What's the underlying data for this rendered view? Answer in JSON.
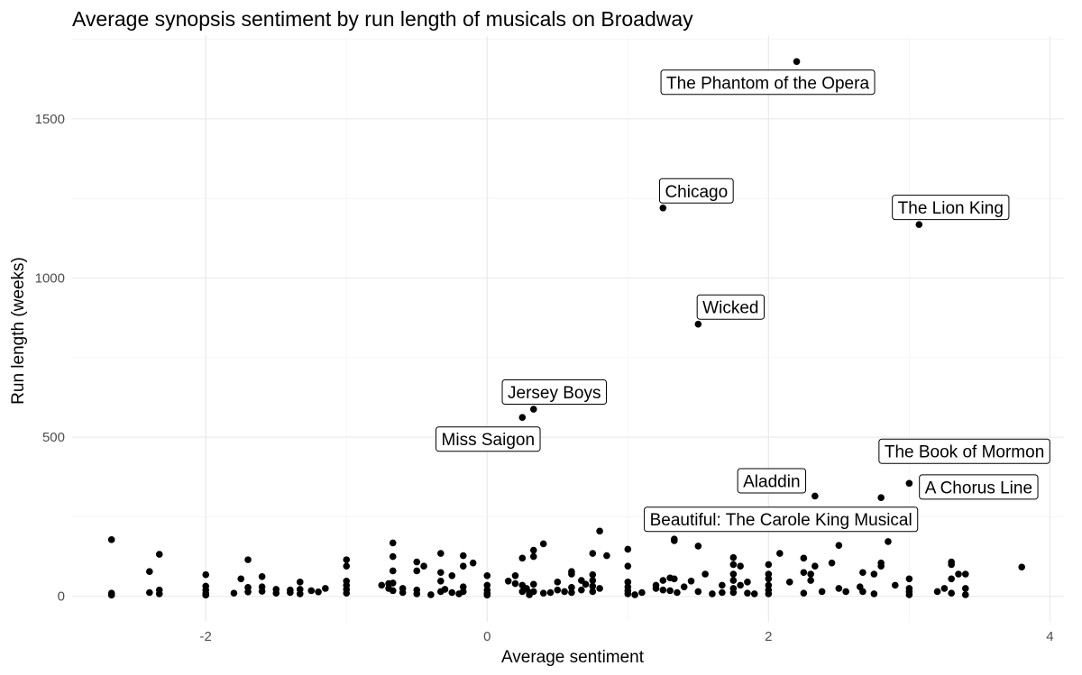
{
  "chart_data": {
    "type": "scatter",
    "title": "Average synopsis sentiment by run length of musicals on Broadway",
    "xlabel": "Average sentiment",
    "ylabel": "Run length (weeks)",
    "xlim": [
      -2.95,
      4.1
    ],
    "ylim": [
      -80,
      1760
    ],
    "x_ticks": [
      -2,
      0,
      2,
      4
    ],
    "y_ticks": [
      0,
      500,
      1000,
      1500
    ],
    "grid": true,
    "legend": "none",
    "labeled_points": [
      {
        "label": "The Phantom of the Opera",
        "x": 2.2,
        "y": 1680
      },
      {
        "label": "Chicago",
        "x": 1.25,
        "y": 1220
      },
      {
        "label": "The Lion King",
        "x": 3.07,
        "y": 1168
      },
      {
        "label": "Wicked",
        "x": 1.5,
        "y": 855
      },
      {
        "label": "Jersey Boys",
        "x": 0.33,
        "y": 588
      },
      {
        "label": "Miss Saigon",
        "x": 0.25,
        "y": 562
      },
      {
        "label": "The Book of Mormon",
        "x": 3.2,
        "y": 470
      },
      {
        "label": "A Chorus Line",
        "x": 3.0,
        "y": 355
      },
      {
        "label": "Aladdin",
        "x": 2.33,
        "y": 315
      },
      {
        "label": "Beautiful: The Carole King Musical",
        "x": 2.8,
        "y": 310
      }
    ],
    "points": [
      [
        -2.67,
        178
      ],
      [
        -2.67,
        10
      ],
      [
        -2.67,
        4
      ],
      [
        -2.4,
        78
      ],
      [
        -2.4,
        12
      ],
      [
        -2.33,
        132
      ],
      [
        -2.33,
        20
      ],
      [
        -2.33,
        8
      ],
      [
        -2.0,
        68
      ],
      [
        -2.0,
        32
      ],
      [
        -2.0,
        20
      ],
      [
        -2.0,
        10
      ],
      [
        -2.0,
        4
      ],
      [
        -1.8,
        10
      ],
      [
        -1.75,
        55
      ],
      [
        -1.7,
        115
      ],
      [
        -1.7,
        28
      ],
      [
        -1.7,
        14
      ],
      [
        -1.6,
        62
      ],
      [
        -1.6,
        30
      ],
      [
        -1.6,
        16
      ],
      [
        -1.5,
        22
      ],
      [
        -1.5,
        10
      ],
      [
        -1.4,
        20
      ],
      [
        -1.4,
        12
      ],
      [
        -1.33,
        45
      ],
      [
        -1.33,
        22
      ],
      [
        -1.33,
        8
      ],
      [
        -1.25,
        18
      ],
      [
        -1.2,
        14
      ],
      [
        -1.15,
        25
      ],
      [
        -1.0,
        115
      ],
      [
        -1.0,
        95
      ],
      [
        -1.0,
        48
      ],
      [
        -1.0,
        35
      ],
      [
        -1.0,
        22
      ],
      [
        -1.0,
        10
      ],
      [
        -0.75,
        35
      ],
      [
        -0.7,
        40
      ],
      [
        -0.7,
        25
      ],
      [
        -0.67,
        168
      ],
      [
        -0.67,
        125
      ],
      [
        -0.67,
        80
      ],
      [
        -0.67,
        42
      ],
      [
        -0.67,
        18
      ],
      [
        -0.6,
        25
      ],
      [
        -0.6,
        12
      ],
      [
        -0.5,
        108
      ],
      [
        -0.5,
        80
      ],
      [
        -0.5,
        20
      ],
      [
        -0.5,
        8
      ],
      [
        -0.45,
        95
      ],
      [
        -0.4,
        5
      ],
      [
        -0.33,
        135
      ],
      [
        -0.33,
        75
      ],
      [
        -0.33,
        48
      ],
      [
        -0.33,
        15
      ],
      [
        -0.3,
        22
      ],
      [
        -0.25,
        65
      ],
      [
        -0.25,
        12
      ],
      [
        -0.2,
        8
      ],
      [
        -0.17,
        128
      ],
      [
        -0.17,
        95
      ],
      [
        -0.17,
        30
      ],
      [
        -0.17,
        15
      ],
      [
        -0.1,
        105
      ],
      [
        0.0,
        65
      ],
      [
        0.0,
        35
      ],
      [
        0.0,
        20
      ],
      [
        0.0,
        10
      ],
      [
        0.0,
        4
      ],
      [
        0.15,
        48
      ],
      [
        0.2,
        65
      ],
      [
        0.2,
        40
      ],
      [
        0.25,
        120
      ],
      [
        0.25,
        35
      ],
      [
        0.25,
        15
      ],
      [
        0.28,
        25
      ],
      [
        0.3,
        12
      ],
      [
        0.3,
        5
      ],
      [
        0.33,
        145
      ],
      [
        0.33,
        125
      ],
      [
        0.33,
        38
      ],
      [
        0.33,
        15
      ],
      [
        0.4,
        165
      ],
      [
        0.4,
        10
      ],
      [
        0.45,
        12
      ],
      [
        0.5,
        45
      ],
      [
        0.5,
        20
      ],
      [
        0.55,
        15
      ],
      [
        0.6,
        78
      ],
      [
        0.6,
        70
      ],
      [
        0.6,
        28
      ],
      [
        0.6,
        12
      ],
      [
        0.67,
        50
      ],
      [
        0.67,
        20
      ],
      [
        0.7,
        38
      ],
      [
        0.75,
        135
      ],
      [
        0.75,
        68
      ],
      [
        0.75,
        50
      ],
      [
        0.75,
        32
      ],
      [
        0.75,
        15
      ],
      [
        0.8,
        205
      ],
      [
        0.8,
        25
      ],
      [
        0.85,
        128
      ],
      [
        1.0,
        148
      ],
      [
        1.0,
        95
      ],
      [
        1.0,
        45
      ],
      [
        1.0,
        30
      ],
      [
        1.0,
        18
      ],
      [
        1.0,
        8
      ],
      [
        1.05,
        5
      ],
      [
        1.1,
        12
      ],
      [
        1.2,
        35
      ],
      [
        1.2,
        25
      ],
      [
        1.25,
        50
      ],
      [
        1.25,
        20
      ],
      [
        1.3,
        58
      ],
      [
        1.3,
        18
      ],
      [
        1.33,
        180
      ],
      [
        1.33,
        175
      ],
      [
        1.33,
        55
      ],
      [
        1.35,
        12
      ],
      [
        1.4,
        30
      ],
      [
        1.45,
        48
      ],
      [
        1.5,
        158
      ],
      [
        1.5,
        15
      ],
      [
        1.55,
        70
      ],
      [
        1.6,
        8
      ],
      [
        1.67,
        35
      ],
      [
        1.67,
        12
      ],
      [
        1.75,
        122
      ],
      [
        1.75,
        100
      ],
      [
        1.75,
        70
      ],
      [
        1.75,
        50
      ],
      [
        1.75,
        25
      ],
      [
        1.75,
        12
      ],
      [
        1.8,
        95
      ],
      [
        1.8,
        35
      ],
      [
        1.85,
        45
      ],
      [
        1.85,
        10
      ],
      [
        1.9,
        8
      ],
      [
        2.0,
        100
      ],
      [
        2.0,
        70
      ],
      [
        2.0,
        55
      ],
      [
        2.0,
        35
      ],
      [
        2.0,
        20
      ],
      [
        2.0,
        8
      ],
      [
        2.08,
        135
      ],
      [
        2.15,
        45
      ],
      [
        2.25,
        120
      ],
      [
        2.25,
        75
      ],
      [
        2.25,
        10
      ],
      [
        2.3,
        70
      ],
      [
        2.3,
        50
      ],
      [
        2.33,
        95
      ],
      [
        2.38,
        15
      ],
      [
        2.45,
        105
      ],
      [
        2.5,
        160
      ],
      [
        2.5,
        25
      ],
      [
        2.55,
        15
      ],
      [
        2.65,
        30
      ],
      [
        2.67,
        75
      ],
      [
        2.67,
        15
      ],
      [
        2.75,
        70
      ],
      [
        2.75,
        8
      ],
      [
        2.8,
        105
      ],
      [
        2.8,
        95
      ],
      [
        2.85,
        172
      ],
      [
        2.9,
        35
      ],
      [
        3.0,
        55
      ],
      [
        3.0,
        25
      ],
      [
        3.0,
        15
      ],
      [
        3.0,
        5
      ],
      [
        3.2,
        15
      ],
      [
        3.25,
        25
      ],
      [
        3.3,
        108
      ],
      [
        3.3,
        100
      ],
      [
        3.3,
        55
      ],
      [
        3.3,
        10
      ],
      [
        3.35,
        70
      ],
      [
        3.4,
        70
      ],
      [
        3.4,
        25
      ],
      [
        3.4,
        5
      ],
      [
        3.8,
        92
      ]
    ]
  }
}
